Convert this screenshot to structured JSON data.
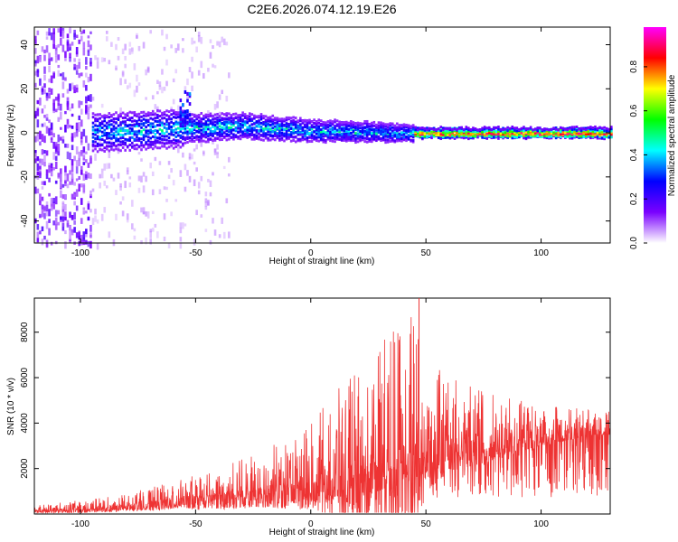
{
  "figure_title": "C2E6.2026.074.12.19.E26",
  "colors": {
    "line": "#ee3333",
    "frame": "#000000",
    "background": "#ffffff"
  },
  "chart_data": [
    {
      "type": "heatmap",
      "title": "C2E6.2026.074.12.19.E26",
      "xlabel": "Height of straight line (km)",
      "ylabel": "Frequency (Hz)",
      "xlim": [
        -120,
        130
      ],
      "ylim": [
        -50,
        48
      ],
      "x_ticks": [
        -100,
        -50,
        0,
        50,
        100
      ],
      "y_ticks": [
        -40,
        -20,
        0,
        20,
        40
      ],
      "grid": false,
      "description_of_content": "spectral trace centered near 0 Hz; broadband noise below -95 km, bright narrow trace converging to 0 Hz above 45 km",
      "trace_center_hz": [
        {
          "x": -95,
          "y": 0
        },
        {
          "x": -55,
          "y": 2
        },
        {
          "x": -30,
          "y": 3
        },
        {
          "x": 0,
          "y": 1
        },
        {
          "x": 40,
          "y": 0
        },
        {
          "x": 45,
          "y": 0
        },
        {
          "x": 130,
          "y": 0
        }
      ],
      "colorbar": {
        "label": "Normalized spectral amplitude",
        "ticks": [
          0.0,
          0.2,
          0.4,
          0.6,
          0.8
        ],
        "tick_labels": [
          "0.0",
          "0.2",
          "0.4",
          "0.6",
          "0.8"
        ],
        "range": [
          0,
          0.98
        ],
        "colormap": [
          "#ffffff",
          "#7a00ff",
          "#0000ff",
          "#00ffff",
          "#00ff00",
          "#ffff00",
          "#ff0000",
          "#ff00ff"
        ]
      }
    },
    {
      "type": "line",
      "xlabel": "Height of straight line (km)",
      "ylabel": "SNR (10 * v/v)",
      "xlim": [
        -120,
        130
      ],
      "ylim": [
        0,
        9500
      ],
      "x_ticks": [
        -100,
        -50,
        0,
        50,
        100
      ],
      "y_ticks": [
        2000,
        4000,
        6000,
        8000
      ],
      "grid": false,
      "envelope": {
        "x": [
          -120,
          -100,
          -80,
          -60,
          -40,
          -20,
          0,
          20,
          30,
          40,
          45,
          50,
          60,
          80,
          100,
          120,
          130
        ],
        "mean": [
          200,
          250,
          450,
          700,
          950,
          1300,
          1700,
          2400,
          2900,
          3100,
          3000,
          3300,
          3500,
          3500,
          3700,
          3900,
          3900
        ],
        "peak": [
          400,
          600,
          900,
          1400,
          2000,
          2800,
          4000,
          6500,
          7800,
          8300,
          9500,
          6800,
          6000,
          5200,
          4800,
          4600,
          4500
        ]
      }
    }
  ]
}
